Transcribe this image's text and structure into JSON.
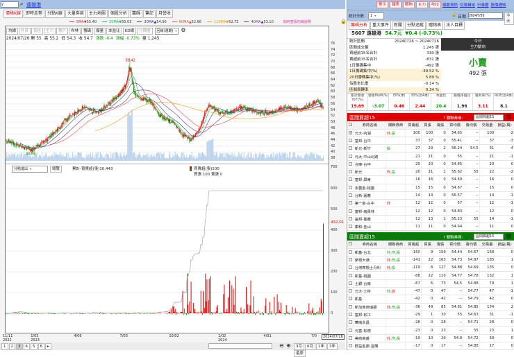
{
  "header": {
    "symbol_input": "7",
    "stock_name": "遠雄港"
  },
  "left_tabs": [
    "價格K線",
    "即時走勢",
    "分點K線",
    "大量券商",
    "主力地圖",
    "個股分析",
    "籌碼",
    "筆記",
    "月營收"
  ],
  "ma_legend": [
    {
      "label": "5MA",
      "arrow": "▼",
      "value": "55.40",
      "color": "#c0392b"
    },
    {
      "label": "10MA",
      "arrow": "▼",
      "value": "55.03",
      "color": "#27ae60"
    },
    {
      "label": "20MA",
      "arrow": "▲",
      "value": "54.90",
      "color": "#2c3e80"
    },
    {
      "label": "60MA",
      "arrow": "▲",
      "value": "52.66",
      "color": "#e74c3c"
    },
    {
      "label": "120MA",
      "arrow": "▼",
      "value": "52.73",
      "color": "#f39c12"
    },
    {
      "label": "40MA",
      "arrow": "▲",
      "value": "53.10",
      "color": "#6c3483"
    }
  ],
  "ma_help": "如何查看均線說明",
  "chart_toolbar": {
    "buttons": [
      {
        "label": "均線",
        "enabled": true
      },
      {
        "label": "外資",
        "enabled": false
      },
      {
        "label": "投信",
        "enabled": false
      },
      {
        "label": "主力",
        "enabled": false
      },
      {
        "label": "散戶",
        "enabled": false
      },
      {
        "label": "布林",
        "enabled": true
      },
      {
        "label": "籌碼",
        "enabled": true
      },
      {
        "label": "爆量",
        "enabled": true
      },
      {
        "label": "本益比",
        "enabled": true
      },
      {
        "label": "KD線",
        "enabled": true
      },
      {
        "label": "分價圖",
        "enabled": false
      }
    ],
    "period_select": "回線(週期)"
  },
  "ohlc": {
    "date": "2024/07/26",
    "open_label": "開",
    "open": "55",
    "high_label": "高",
    "high": "55.2",
    "low_label": "低",
    "low": "54.3",
    "close_label": "收",
    "close": "54.7",
    "chg_label": "漲跌",
    "chg": "-0.4",
    "pct_label": "漲幅",
    "pct": "-0.73%",
    "vol_label": "量",
    "vol": "1,245"
  },
  "price_chart": {
    "y_ticks": [
      76,
      74,
      72,
      70,
      68,
      66,
      64,
      62,
      60,
      58,
      56,
      54,
      52,
      50,
      48,
      46,
      44,
      42,
      40,
      38
    ],
    "ylim": [
      38,
      76
    ],
    "max_label": "69.42",
    "min_label": "40.66",
    "close_anchors": [
      [
        0,
        44
      ],
      [
        12,
        42.5
      ],
      [
        34,
        40.7
      ],
      [
        48,
        43
      ],
      [
        66,
        47
      ],
      [
        85,
        52
      ],
      [
        103,
        55
      ],
      [
        121,
        53
      ],
      [
        140,
        57
      ],
      [
        153,
        60
      ],
      [
        160,
        63
      ],
      [
        164,
        69.4
      ],
      [
        169,
        60
      ],
      [
        176,
        58
      ],
      [
        190,
        57
      ],
      [
        204,
        52
      ],
      [
        220,
        50
      ],
      [
        233,
        46
      ],
      [
        243,
        44
      ],
      [
        255,
        47
      ],
      [
        268,
        56
      ],
      [
        282,
        53
      ],
      [
        296,
        53
      ],
      [
        314,
        55
      ],
      [
        333,
        53
      ],
      [
        351,
        53
      ],
      [
        369,
        55
      ],
      [
        383,
        54
      ],
      [
        397,
        55
      ],
      [
        411,
        57
      ],
      [
        420,
        54.7
      ]
    ],
    "days": 420,
    "up_color": "#e00000",
    "down_color": "#009900"
  },
  "flow_panel": {
    "select": "分點進出",
    "button": "總覽",
    "cum_label": "累計-買賣超(張)10,443",
    "legend_net": "買賣超(張)100",
    "legend_bs": "買張 100 賣張 0",
    "y_ticks": [
      600,
      500,
      400,
      300,
      200,
      100,
      0
    ],
    "ylim": [
      0,
      600
    ],
    "current_label": "432.01",
    "right_top_tick": "700"
  },
  "x_axis": [
    {
      "d": "11/11",
      "y": "2022",
      "i": 0
    },
    {
      "d": "1/03",
      "y": "2023",
      "i": 37
    },
    {
      "d": "4/06",
      "y": "",
      "i": 94
    },
    {
      "d": "7/03",
      "y": "",
      "i": 155
    },
    {
      "d": "10/02",
      "y": "",
      "i": 220
    },
    {
      "d": "1/02",
      "y": "2024",
      "i": 285
    },
    {
      "d": "4/01",
      "y": "",
      "i": 345
    },
    {
      "d": "7/0",
      "y": "",
      "i": 408
    }
  ],
  "x_cursor": "2024/07/26",
  "bottom_toolbar": {
    "pages": [
      "1",
      "2",
      "3",
      "4",
      "5",
      "6"
    ],
    "active_page": "3",
    "ranges": [
      "3月",
      "6月",
      "1年",
      "3年"
    ],
    "reset": "還原"
  },
  "right": {
    "red_buttons": [
      "警示",
      "報表",
      "贈物",
      "主力",
      "吃拉"
    ],
    "links": [
      "個股資訊",
      "交易雜誌",
      "行事曆",
      "股價通知"
    ],
    "days_label": "統計天數",
    "days_value": "1",
    "date_label": "日期",
    "date_value": "2024/7/26",
    "today": "今天",
    "tabs": [
      "籌碼分析",
      "重大事件",
      "新聞",
      "分點追蹤",
      "贈物表",
      "法人目標"
    ],
    "stock": {
      "code_name": "5607 遠雄港",
      "price": "54.7元",
      "change": "▼0.4 (-0.73%)"
    },
    "stats": [
      {
        "label": "統計區間",
        "value": "20240726 ~ 20240726",
        "hl": false
      },
      {
        "label": "區間成交量",
        "value": "1,245 張",
        "hl": false
      },
      {
        "label": "買超前15名合計",
        "value": "339 張",
        "hl": false
      },
      {
        "label": "賣超前15名合計",
        "value": "-831 張",
        "hl": false
      },
      {
        "label": "1日籌碼集中",
        "value": "-492 張",
        "hl": false
      },
      {
        "label": "1日籌碼集中(%)",
        "value": "-39.52 %",
        "hl": true
      },
      {
        "label": "20日籌碼集中(%)",
        "value": "5.89 %",
        "hl": true
      },
      {
        "label": "佔股本比重",
        "value": "-0.14 %",
        "hl": false
      },
      {
        "label": "區間周轉率",
        "value": "0.34 %",
        "hl": true
      }
    ],
    "trend_box": {
      "line1": "今日",
      "line2": "主力動向",
      "signal": "小賣",
      "amount": "492 張"
    },
    "metrics": [
      {
        "label": "累計營收YoY(%)",
        "value": "19.69",
        "color": "#e00"
      },
      {
        "label": "營收MoM(%)",
        "value": "-3.07",
        "color": "#090"
      },
      {
        "label": "EPS(季)",
        "value": "0.46",
        "color": "#e00"
      },
      {
        "label": "EPS(近4季)",
        "value": "2.44",
        "color": "#e00"
      },
      {
        "label": "本益比",
        "value": "20.4",
        "color": "#090"
      },
      {
        "label": "股價淨值比",
        "value": "1.96",
        "color": "#222"
      },
      {
        "label": "殖利率(%)",
        "value": "3.11",
        "color": "#e00"
      },
      {
        "label": "ROE(近4季)",
        "value": "8.1",
        "color": "#222"
      }
    ],
    "columns": [
      "券商名稱",
      "關聯券商",
      "買賣超",
      "買張",
      "賣張",
      "買均價",
      "賣均價",
      "交易量",
      "損益(萬)"
    ],
    "buy": {
      "title": "區間買超15",
      "rel_label": "? 關聯券商:",
      "rel_select": "區間買超15",
      "color": "#e00000",
      "rows": [
        {
          "checked": true,
          "name": "元大-內湖",
          "tags": [
            [
              "外",
              "#e00"
            ],
            [
              "投",
              "#090"
            ]
          ],
          "v": [
            "100",
            "100",
            "0",
            "54.65",
            "--",
            "100",
            "-2"
          ]
        },
        {
          "name": "富邦-台中",
          "tags": [],
          "v": [
            "37",
            "37",
            "0",
            "55.41",
            "--",
            "37",
            "-3"
          ]
        },
        {
          "name": "新光-新竹",
          "tags": [
            [
              "投",
              "#090"
            ]
          ],
          "v": [
            "27",
            "29",
            "2",
            "56.24",
            "54.5",
            "31",
            "-4"
          ]
        },
        {
          "name": "元大-中山北路",
          "tags": [],
          "v": [
            "21",
            "21",
            "0",
            "55",
            "--",
            "21",
            "-1"
          ]
        },
        {
          "name": "合庫-台中",
          "tags": [],
          "v": [
            "20",
            "20",
            "0",
            "54.85",
            "--",
            "20",
            "0"
          ]
        },
        {
          "name": "新光",
          "tags": [
            [
              "作",
              "#e00"
            ],
            [
              "投",
              "#090"
            ]
          ],
          "v": [
            "20",
            "21",
            "1",
            "55.62",
            "55",
            "22",
            "-2"
          ]
        },
        {
          "name": "富邦-屏東",
          "tags": [],
          "v": [
            "16",
            "16",
            "0",
            "54.69",
            "--",
            "16",
            "0"
          ]
        },
        {
          "name": "永豐金-桃園",
          "tags": [],
          "v": [
            "15",
            "15",
            "0",
            "54.67",
            "--",
            "15",
            "0"
          ]
        },
        {
          "name": "台新-嘉義",
          "tags": [],
          "v": [
            "14",
            "14",
            "0",
            "56.57",
            "--",
            "14",
            "-1"
          ]
        },
        {
          "name": "第一金-台中",
          "tags": [
            [
              "外",
              "#e00"
            ]
          ],
          "v": [
            "12",
            "12",
            "0",
            "57",
            "--",
            "12",
            "-1"
          ]
        },
        {
          "name": "富邦-南員林",
          "tags": [],
          "v": [
            "12",
            "12",
            "0",
            "54.83",
            "--",
            "12",
            "0"
          ]
        },
        {
          "name": "富邦-嘉義",
          "tags": [],
          "v": [
            "12",
            "13",
            "1",
            "55.23",
            "55",
            "14",
            "-1"
          ]
        },
        {
          "name": "康和-金山",
          "tags": [],
          "v": [
            "11",
            "11",
            "0",
            "54.64",
            "--",
            "11",
            "0"
          ]
        }
      ]
    },
    "sell": {
      "title": "區間賣超15",
      "rel_label": "? 關聯券商:",
      "rel_select": "區間賣超15",
      "color": "#0a7a0a",
      "rows": [
        {
          "name": "凱基-台北",
          "tags": [
            [
              "外",
              "#090"
            ],
            [
              "作",
              "#090"
            ],
            [
              "投",
              "#090"
            ]
          ],
          "v": [
            "-150",
            "9",
            "159",
            "54.44",
            "54.67",
            "168",
            "0"
          ]
        },
        {
          "name": "摩根大通",
          "tags": [
            [
              "外",
              "#e00"
            ],
            [
              "作",
              "#090"
            ],
            [
              "投",
              "#090"
            ]
          ],
          "v": [
            "-141",
            "22",
            "163",
            "54.73",
            "54.87",
            "185",
            "1"
          ]
        },
        {
          "name": "台灣摩根士丹利",
          "tags": [
            [
              "外",
              "#e00"
            ],
            [
              "投",
              "#090"
            ]
          ],
          "v": [
            "-119",
            "8",
            "127",
            "54.88",
            "54.69",
            "135",
            "0"
          ]
        },
        {
          "name": "凱基-桃園",
          "tags": [],
          "v": [
            "-88",
            "22",
            "110",
            "54.77",
            "54.78",
            "132",
            "1"
          ]
        },
        {
          "name": "土銀-台南",
          "tags": [],
          "v": [
            "-67",
            "6",
            "73",
            "54.5",
            "54.88",
            "79",
            "1"
          ]
        },
        {
          "name": "元大-士林",
          "tags": [
            [
              "外",
              "#090"
            ],
            [
              "自",
              "#e00"
            ]
          ],
          "v": [
            "-47",
            "0",
            "47",
            "--",
            "54.77",
            "47",
            "-1"
          ]
        },
        {
          "name": "凱基",
          "tags": [],
          "v": [
            "-42",
            "0",
            "42",
            "--",
            "54.79",
            "42",
            "0"
          ]
        },
        {
          "name": "新加坡商瑞銀",
          "tags": [
            [
              "外",
              "#e00"
            ],
            [
              "作",
              "#090"
            ],
            [
              "投",
              "#090"
            ]
          ],
          "v": [
            "-36",
            "49",
            "85",
            "54.61",
            "54.85",
            "134",
            "2"
          ]
        },
        {
          "name": "富邦-松江",
          "tags": [],
          "v": [
            "-29",
            "1",
            "30",
            "55",
            "54.63",
            "31",
            "-1"
          ]
        },
        {
          "name": "華南永昌",
          "tags": [],
          "v": [
            "-28",
            "0",
            "28",
            "--",
            "54.71",
            "28",
            "0"
          ]
        },
        {
          "name": "元富-松德",
          "tags": [],
          "v": [
            "-23",
            "0",
            "23",
            "--",
            "55",
            "23",
            "1"
          ]
        },
        {
          "name": "美商高盛",
          "tags": [
            [
              "外",
              "#e00"
            ],
            [
              "作",
              "#090"
            ],
            [
              "投",
              "#090"
            ]
          ],
          "v": [
            "-19",
            "10",
            "29",
            "54.8",
            "54.72",
            "39",
            "0"
          ]
        },
        {
          "name": "群益金鼎-宜蘭",
          "tags": [],
          "v": [
            "-17",
            "0",
            "17",
            "--",
            "54.88",
            "17",
            "0"
          ]
        }
      ]
    }
  }
}
